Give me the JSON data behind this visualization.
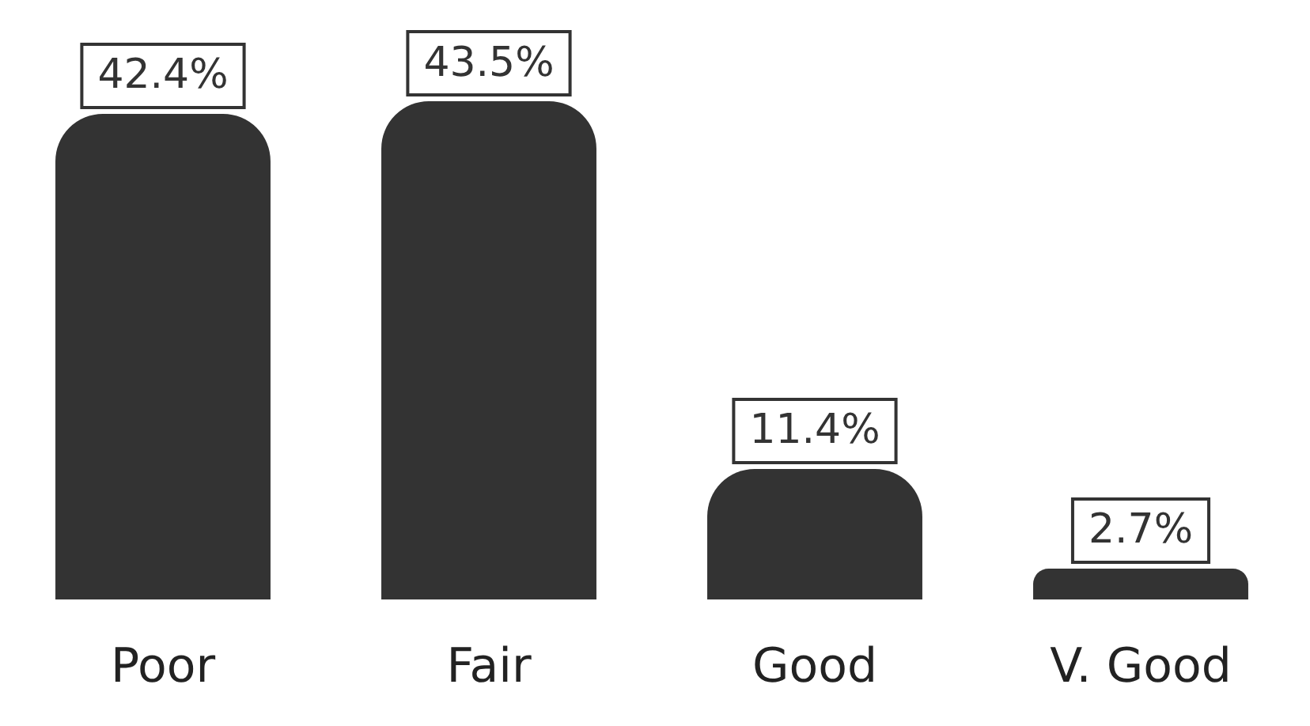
{
  "chart_data": {
    "type": "bar",
    "categories": [
      "Poor",
      "Fair",
      "Good",
      "V. Good"
    ],
    "values": [
      42.4,
      43.5,
      11.4,
      2.7
    ],
    "color": "#333333",
    "value_labels": [
      "42.4%",
      "43.5%",
      "11.4%",
      "2.7%"
    ]
  }
}
